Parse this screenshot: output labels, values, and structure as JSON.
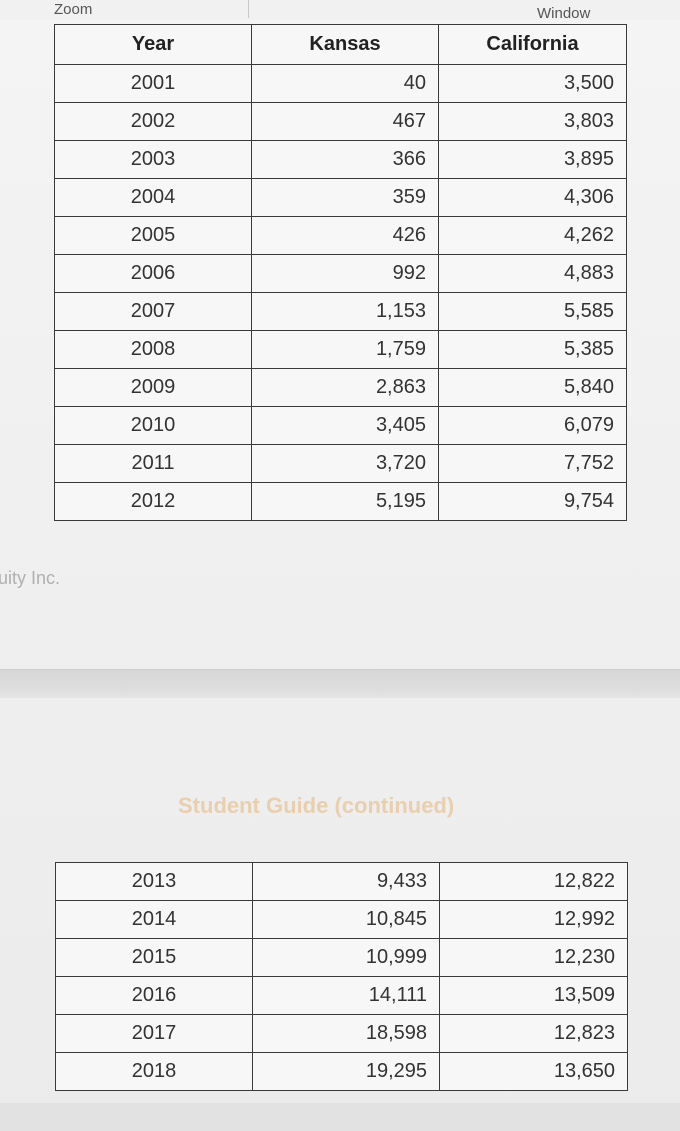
{
  "menu": {
    "zoom": "Zoom",
    "window": "Window"
  },
  "table": {
    "headers": [
      "Year",
      "Kansas",
      "California"
    ],
    "rows": [
      [
        "2001",
        "40",
        "3,500"
      ],
      [
        "2002",
        "467",
        "3,803"
      ],
      [
        "2003",
        "366",
        "3,895"
      ],
      [
        "2004",
        "359",
        "4,306"
      ],
      [
        "2005",
        "426",
        "4,262"
      ],
      [
        "2006",
        "992",
        "4,883"
      ],
      [
        "2007",
        "1,153",
        "5,585"
      ],
      [
        "2008",
        "1,759",
        "5,385"
      ],
      [
        "2009",
        "2,863",
        "5,840"
      ],
      [
        "2010",
        "3,405",
        "6,079"
      ],
      [
        "2011",
        "3,720",
        "7,752"
      ],
      [
        "2012",
        "5,195",
        "9,754"
      ]
    ],
    "rows_continued": [
      [
        "2013",
        "9,433",
        "12,822"
      ],
      [
        "2014",
        "10,845",
        "12,992"
      ],
      [
        "2015",
        "10,999",
        "12,230"
      ],
      [
        "2016",
        "14,111",
        "13,509"
      ],
      [
        "2017",
        "18,598",
        "12,823"
      ],
      [
        "2018",
        "19,295",
        "13,650"
      ]
    ]
  },
  "footer": {
    "text": "uity Inc."
  },
  "page2": {
    "heading": "Student Guide (continued)"
  }
}
